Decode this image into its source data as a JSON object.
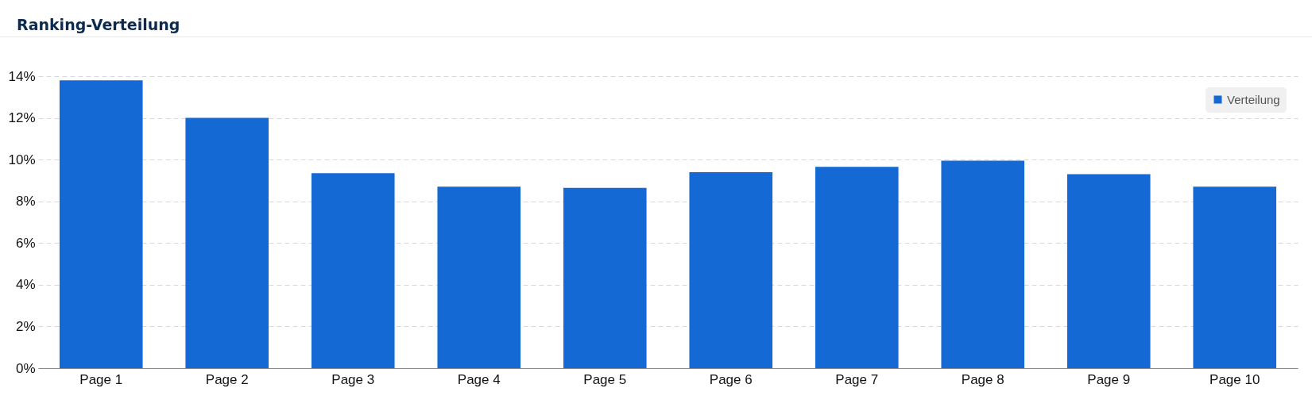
{
  "chart_data": {
    "type": "bar",
    "title": "Ranking-Verteilung",
    "categories": [
      "Page 1",
      "Page 2",
      "Page 3",
      "Page 4",
      "Page 5",
      "Page 6",
      "Page 7",
      "Page 8",
      "Page 9",
      "Page 10"
    ],
    "series": [
      {
        "name": "Verteilung",
        "color": "#1469d4",
        "values": [
          13.8,
          12.0,
          9.35,
          8.7,
          8.65,
          9.4,
          9.65,
          9.95,
          9.3,
          8.7
        ]
      }
    ],
    "ylim": [
      0,
      14
    ],
    "yticks": [
      {
        "value": 0,
        "label": "0%"
      },
      {
        "value": 2,
        "label": "2%"
      },
      {
        "value": 4,
        "label": "4%"
      },
      {
        "value": 6,
        "label": "6%"
      },
      {
        "value": 8,
        "label": "8%"
      },
      {
        "value": 10,
        "label": "10%"
      },
      {
        "value": 12,
        "label": "12%"
      },
      {
        "value": 14,
        "label": "14%"
      }
    ],
    "grid": "y",
    "legend": "top right"
  }
}
